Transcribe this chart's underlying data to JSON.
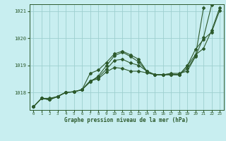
{
  "title": "Graphe pression niveau de la mer (hPa)",
  "bg_color": "#c8eef0",
  "line_color": "#2d5a2d",
  "grid_color": "#9ecfcf",
  "xlim": [
    -0.5,
    23.5
  ],
  "ylim": [
    1017.35,
    1021.25
  ],
  "yticks": [
    1018,
    1019,
    1020,
    1021
  ],
  "xticks": [
    0,
    1,
    2,
    3,
    4,
    5,
    6,
    7,
    8,
    9,
    10,
    11,
    12,
    13,
    14,
    15,
    16,
    17,
    18,
    19,
    20,
    21,
    22,
    23
  ],
  "series": [
    [
      1017.47,
      1017.78,
      1017.78,
      1017.85,
      1018.0,
      1018.02,
      1018.1,
      1018.7,
      1018.82,
      1019.1,
      1019.42,
      1019.52,
      1019.38,
      1019.22,
      1018.78,
      1018.65,
      1018.65,
      1018.65,
      1018.65,
      1018.98,
      1019.38,
      1019.62,
      1020.28,
      1021.12
    ],
    [
      1017.47,
      1017.78,
      1017.73,
      1017.85,
      1018.0,
      1018.02,
      1018.1,
      1018.38,
      1018.6,
      1018.98,
      1019.35,
      1019.48,
      1019.32,
      1019.12,
      1018.78,
      1018.65,
      1018.65,
      1018.65,
      1018.65,
      1018.98,
      1019.58,
      1019.95,
      1020.22,
      1021.02
    ],
    [
      1017.47,
      1017.78,
      1017.73,
      1017.85,
      1018.0,
      1018.02,
      1018.1,
      1018.42,
      1018.55,
      1018.85,
      1019.18,
      1019.22,
      1019.08,
      1019.0,
      1018.78,
      1018.65,
      1018.65,
      1018.68,
      1018.65,
      1018.88,
      1019.32,
      1020.02,
      1021.22,
      null
    ],
    [
      1017.47,
      1017.78,
      1017.73,
      1017.85,
      1018.0,
      1018.02,
      1018.1,
      1018.42,
      1018.5,
      1018.75,
      1018.92,
      1018.88,
      1018.78,
      1018.78,
      1018.72,
      1018.65,
      1018.65,
      1018.7,
      1018.7,
      1018.78,
      1019.32,
      1021.12,
      null,
      null
    ]
  ],
  "figsize": [
    3.2,
    2.0
  ],
  "dpi": 100
}
